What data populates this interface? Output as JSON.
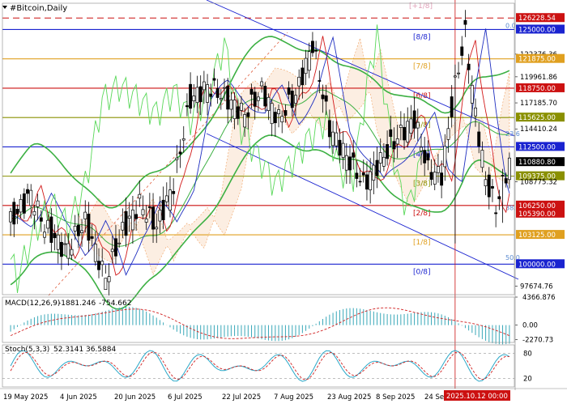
{
  "chart_data": {
    "type": "candlestick",
    "title": "#Bitcoin,Daily",
    "colors": {
      "bull": "#ffffff",
      "bear": "#000000",
      "bb": "#3cb043",
      "chikou": "#5ad85a",
      "tenkan": "#d21a1a",
      "kijun": "#1f2fc0",
      "cloud": "#f0a060",
      "murrey_blue": "#1a23d0",
      "murrey_red": "#cc1111",
      "murrey_orange": "#e0a020",
      "murrey_olive": "#8a9000",
      "murrey_pink": "#e0a0b8",
      "macd_hist": "#3aa8b8",
      "macd_signal": "#d02020",
      "stoch_main": "#2aa8c8",
      "stoch_signal": "#d02020",
      "fib": "#5a8ad0",
      "date_badge": "#cc1111"
    },
    "ylim": [
      96750,
      127800
    ],
    "dates": [
      "19 May 2025",
      "4 Jun 2025",
      "20 Jun 2025",
      "6 Jul 2025",
      "22 Jul 2025",
      "7 Aug 2025",
      "23 Aug 2025",
      "8 Sep 2025",
      "24 Sep 2025",
      "2025.10.12 00:00"
    ],
    "price_ticks": [
      {
        "value": 126228.54,
        "label": "126228.54",
        "highlight": true,
        "color": "#cc1111"
      },
      {
        "value": 125000,
        "label": "125000.00",
        "highlight": true,
        "color": "#1a23d0"
      },
      {
        "value": 122376.36,
        "label": "122376.36"
      },
      {
        "value": 121875,
        "label": "121875.00",
        "highlight": true,
        "color": "#e0a020"
      },
      {
        "value": 119961.86,
        "label": "119961.86"
      },
      {
        "value": 118750,
        "label": "118750.00",
        "highlight": true,
        "color": "#cc1111"
      },
      {
        "value": 117185.7,
        "label": "117185.70"
      },
      {
        "value": 115625,
        "label": "115625.00",
        "highlight": true,
        "color": "#8a9000"
      },
      {
        "value": 114410.24,
        "label": "114410.24"
      },
      {
        "value": 112500,
        "label": "112500.00",
        "highlight": true,
        "color": "#1a23d0"
      },
      {
        "value": 110880.8,
        "label": "110880.80",
        "highlight": true,
        "color": "#000000"
      },
      {
        "value": 109375,
        "label": "109375.00",
        "highlight": true,
        "color": "#8a9000"
      },
      {
        "value": 108775.32,
        "label": "108775.32"
      },
      {
        "value": 106250,
        "label": "106250.00",
        "highlight": true,
        "color": "#cc1111"
      },
      {
        "value": 105390,
        "label": "105390.00",
        "highlight": true,
        "color": "#cc1111"
      },
      {
        "value": 103125,
        "label": "103125.00",
        "highlight": true,
        "color": "#e0a020"
      },
      {
        "value": 100000,
        "label": "100000.00",
        "highlight": true,
        "color": "#1a23d0"
      },
      {
        "value": 97674.76,
        "label": "97674.76"
      }
    ],
    "murrey_levels": [
      {
        "label": "[+1/8]",
        "value": 128125,
        "color": "#e0a0b8"
      },
      {
        "label": "[8/8]",
        "value": 125000,
        "color": "#1a23d0"
      },
      {
        "label": "[7/8]",
        "value": 121875,
        "color": "#e0a020"
      },
      {
        "label": "[6/8]",
        "value": 118750,
        "color": "#cc1111"
      },
      {
        "label": "[5/8]",
        "value": 115625,
        "color": "#8a9000"
      },
      {
        "label": "[4/8]",
        "value": 112500,
        "color": "#1a23d0"
      },
      {
        "label": "[3/8]",
        "value": 109375,
        "color": "#8a9000"
      },
      {
        "label": "[2/8]",
        "value": 106250,
        "color": "#cc1111"
      },
      {
        "label": "[1/8]",
        "value": 103125,
        "color": "#e0a020"
      },
      {
        "label": "[0/8]",
        "value": 100000,
        "color": "#1a23d0"
      }
    ],
    "fib_labels": [
      {
        "label": "0.0",
        "value": 125000
      },
      {
        "label": "23.6",
        "value": 113500
      },
      {
        "label": "38.2",
        "value": 105600
      },
      {
        "label": "50.0",
        "value": 100300
      }
    ],
    "macd": {
      "label": "MACD(12,26,9)",
      "main": -1881.246,
      "signal": -754.662,
      "main_label": "-1881.246",
      "signal_label": "-754.662",
      "ylim": [
        -2700,
        4366.876
      ],
      "ticks": [
        {
          "value": 4366.876,
          "label": "4366.876"
        },
        {
          "value": 0,
          "label": "0.00"
        },
        {
          "value": -2270.73,
          "label": "-2270.73"
        }
      ]
    },
    "stoch": {
      "label": "Stoch(5,3,3)",
      "main": 52.3141,
      "signal": 36.5884,
      "main_label": "52.3141",
      "signal_label": "36.5884",
      "ylim": [
        0,
        100
      ],
      "ticks": [
        {
          "value": 80,
          "label": "80"
        },
        {
          "value": 20,
          "label": "20"
        }
      ]
    }
  }
}
